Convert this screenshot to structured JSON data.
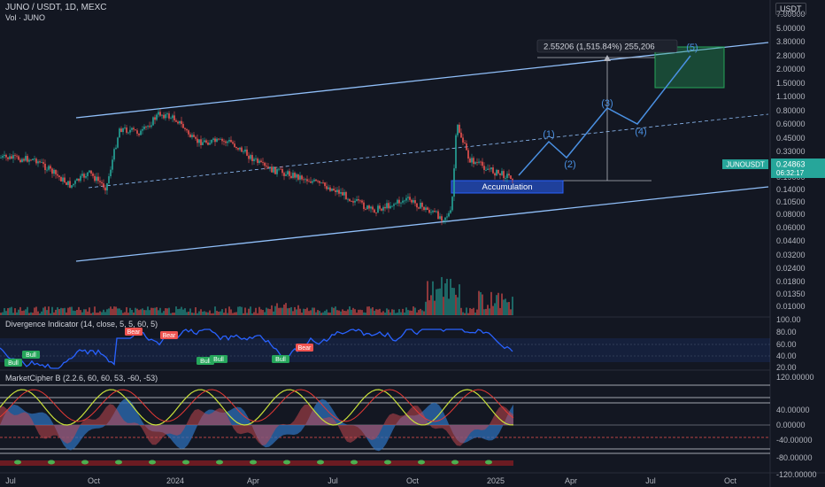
{
  "header": {
    "symbol_line": "JUNO / USDT, 1D, MEXC",
    "volume_line": "Vol · JUNO",
    "currency_button": "USDT"
  },
  "price_axis": [
    "7.00000",
    "5.00000",
    "3.80000",
    "2.80000",
    "2.00000",
    "1.50000",
    "1.10000",
    "0.80000",
    "0.60000",
    "0.45000",
    "0.33000",
    "0.25000",
    "0.19000",
    "0.14000",
    "0.10500",
    "0.08000",
    "0.06000",
    "0.04400",
    "0.03200",
    "0.02400",
    "0.01800",
    "0.01350",
    "0.01000"
  ],
  "current": {
    "symbol": "JUNOUSDT",
    "price": "0.24863",
    "countdown": "06:32:17"
  },
  "time_axis": [
    "Jul",
    "Oct",
    "2024",
    "Apr",
    "Jul",
    "Oct",
    "2025",
    "Apr",
    "Jul",
    "Oct"
  ],
  "annotations": {
    "target_label": "2.55206 (1,515.84%) 255,206",
    "accumulation": "Accumulation",
    "waves": [
      "(1)",
      "(2)",
      "(3)",
      "(4)",
      "(5)"
    ]
  },
  "divergence": {
    "title": "Divergence Indicator (14, close, 5, 5, 60, 5)",
    "axis": [
      "100.00",
      "80.00",
      "60.00",
      "40.00",
      "20.00"
    ],
    "bull_label": "Bull",
    "bear_label": "Bear"
  },
  "marketcipher": {
    "title": "MarketCipher B (2.2.6, 60, 60, 53, -60, -53)",
    "axis": [
      "120.00000",
      "40.00000",
      "0.00000",
      "-40.00000",
      "-80.00000",
      "-120.00000"
    ]
  },
  "colors": {
    "bg": "#131722",
    "up": "#26a69a",
    "down": "#ef5350",
    "channel": "#90bff9",
    "wave": "#4a90e2",
    "rsi": "#2962ff"
  }
}
